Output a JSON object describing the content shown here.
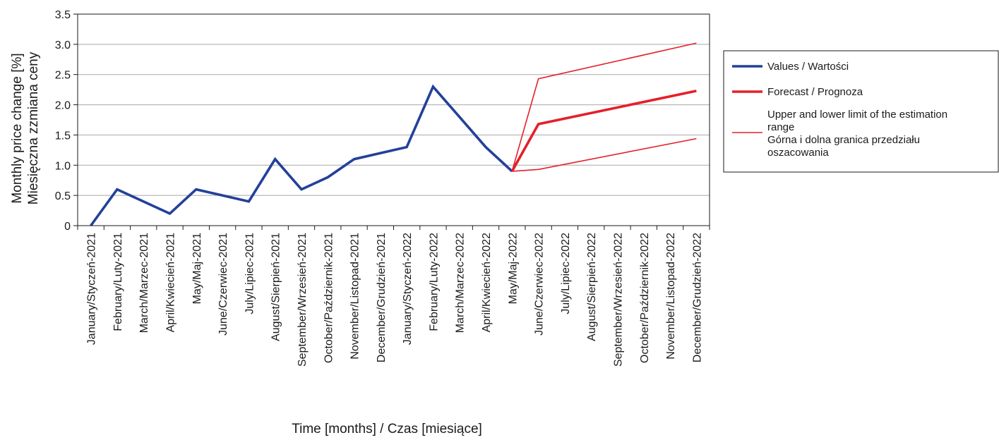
{
  "chart_data": {
    "type": "line",
    "title": "",
    "xlabel": "Time [months] / Czas [miesiące]",
    "ylabel_lines": [
      "Monthly price change [%]",
      "Miesięczna zzmiana ceny"
    ],
    "ylim": [
      0,
      3.5
    ],
    "yticks": [
      0,
      0.5,
      1.0,
      1.5,
      2.0,
      2.5,
      3.0,
      3.5
    ],
    "ytick_labels": [
      "0",
      "0.5",
      "1.0",
      "1.5",
      "2.0",
      "2.5",
      "3.0",
      "3.5"
    ],
    "grid": true,
    "legend_position": "right",
    "categories": [
      "January/Styczeń-2021",
      "February/Luty-2021",
      "March/Marzec-2021",
      "April/Kwiecień-2021",
      "May/Maj-2021",
      "June/Czerwiec-2021",
      "July/Lipiec-2021",
      "August/Sierpień-2021",
      "September/Wrzesień-2021",
      "October/Październik-2021",
      "November/Listopad-2021",
      "December/Grudzień-2021",
      "January/Styczeń-2022",
      "February/Luty-2022",
      "March/Marzec-2022",
      "April/Kwiecień-2022",
      "May/Maj-2022",
      "June/Czerwiec-2022",
      "July/Lipiec-2022",
      "August/Sierpień-2022",
      "September/Wrzesień-2022",
      "October/Październik-2022",
      "November/Listopad-2022",
      "December/Grudzień-2022"
    ],
    "series": [
      {
        "name": "Values / Wartości",
        "color": "#23409a",
        "style": "thick",
        "values": [
          0.0,
          0.6,
          0.4,
          0.2,
          0.6,
          0.5,
          0.4,
          1.1,
          0.6,
          0.8,
          1.1,
          1.2,
          1.3,
          2.3,
          1.8,
          1.3,
          0.9,
          null,
          null,
          null,
          null,
          null,
          null,
          null
        ]
      },
      {
        "name": "Forecast / Prognoza",
        "color": "#e4202a",
        "style": "thick",
        "values": [
          null,
          null,
          null,
          null,
          null,
          null,
          null,
          null,
          null,
          null,
          null,
          null,
          null,
          null,
          null,
          null,
          0.9,
          1.68,
          null,
          null,
          null,
          null,
          null,
          2.23
        ]
      },
      {
        "name": "Upper and lower limit of the estimation range Górna i dolna granica przedziału oszacowania",
        "color": "#e4202a",
        "style": "thin",
        "values": [
          null,
          null,
          null,
          null,
          null,
          null,
          null,
          null,
          null,
          null,
          null,
          null,
          null,
          null,
          null,
          null,
          0.9,
          2.43,
          null,
          null,
          null,
          null,
          null,
          3.02
        ]
      },
      {
        "name": "",
        "color": "#e4202a",
        "style": "thin",
        "values": [
          null,
          null,
          null,
          null,
          null,
          null,
          null,
          null,
          null,
          null,
          null,
          null,
          null,
          null,
          null,
          null,
          0.9,
          0.93,
          null,
          null,
          null,
          null,
          null,
          1.44
        ]
      }
    ],
    "legend": [
      {
        "lines": [
          "Values / Wartości"
        ],
        "color": "#23409a",
        "style": "thick"
      },
      {
        "lines": [
          "Forecast / Prognoza"
        ],
        "color": "#e4202a",
        "style": "thick"
      },
      {
        "lines": [
          "Upper and lower limit of the estimation",
          "range",
          "Górna i dolna granica przedziału",
          "oszacowania"
        ],
        "color": "#e4202a",
        "style": "thin"
      }
    ]
  }
}
